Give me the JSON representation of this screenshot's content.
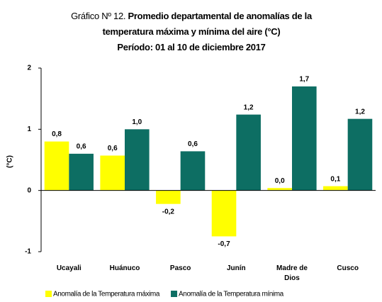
{
  "chart_data": {
    "type": "bar",
    "title_number": "Gráfico Nº 12.",
    "title": "Promedio departamental de anomalías de la temperatura máxima y mínima del aire (°C)",
    "subtitle": "Período: 01 al 10 de diciembre 2017",
    "y_label": "(°C)",
    "categories": [
      "Ucayali",
      "Huánuco",
      "Pasco",
      "Junín",
      "Madre de Dios",
      "Cusco"
    ],
    "series": [
      {
        "name": "Anomalía de la Temperatura máxima",
        "color": "#ffff00",
        "values": [
          0.8,
          0.57,
          -0.22,
          -0.75,
          0.04,
          0.07
        ],
        "value_labels": [
          "0,8",
          "0,6",
          "-0,2",
          "-0,7",
          "0,0",
          "0,1"
        ]
      },
      {
        "name": "Anomalía de la Temperatura mínima",
        "color": "#0d6e63",
        "values": [
          0.6,
          1.0,
          0.64,
          1.24,
          1.7,
          1.17
        ],
        "value_labels": [
          "0,6",
          "1,0",
          "0,6",
          "1,2",
          "1,7",
          "1,2"
        ]
      }
    ],
    "ylim": [
      -1,
      2
    ],
    "yticks": [
      -1,
      0,
      1,
      2
    ],
    "grid": false,
    "legend": "bottom"
  }
}
